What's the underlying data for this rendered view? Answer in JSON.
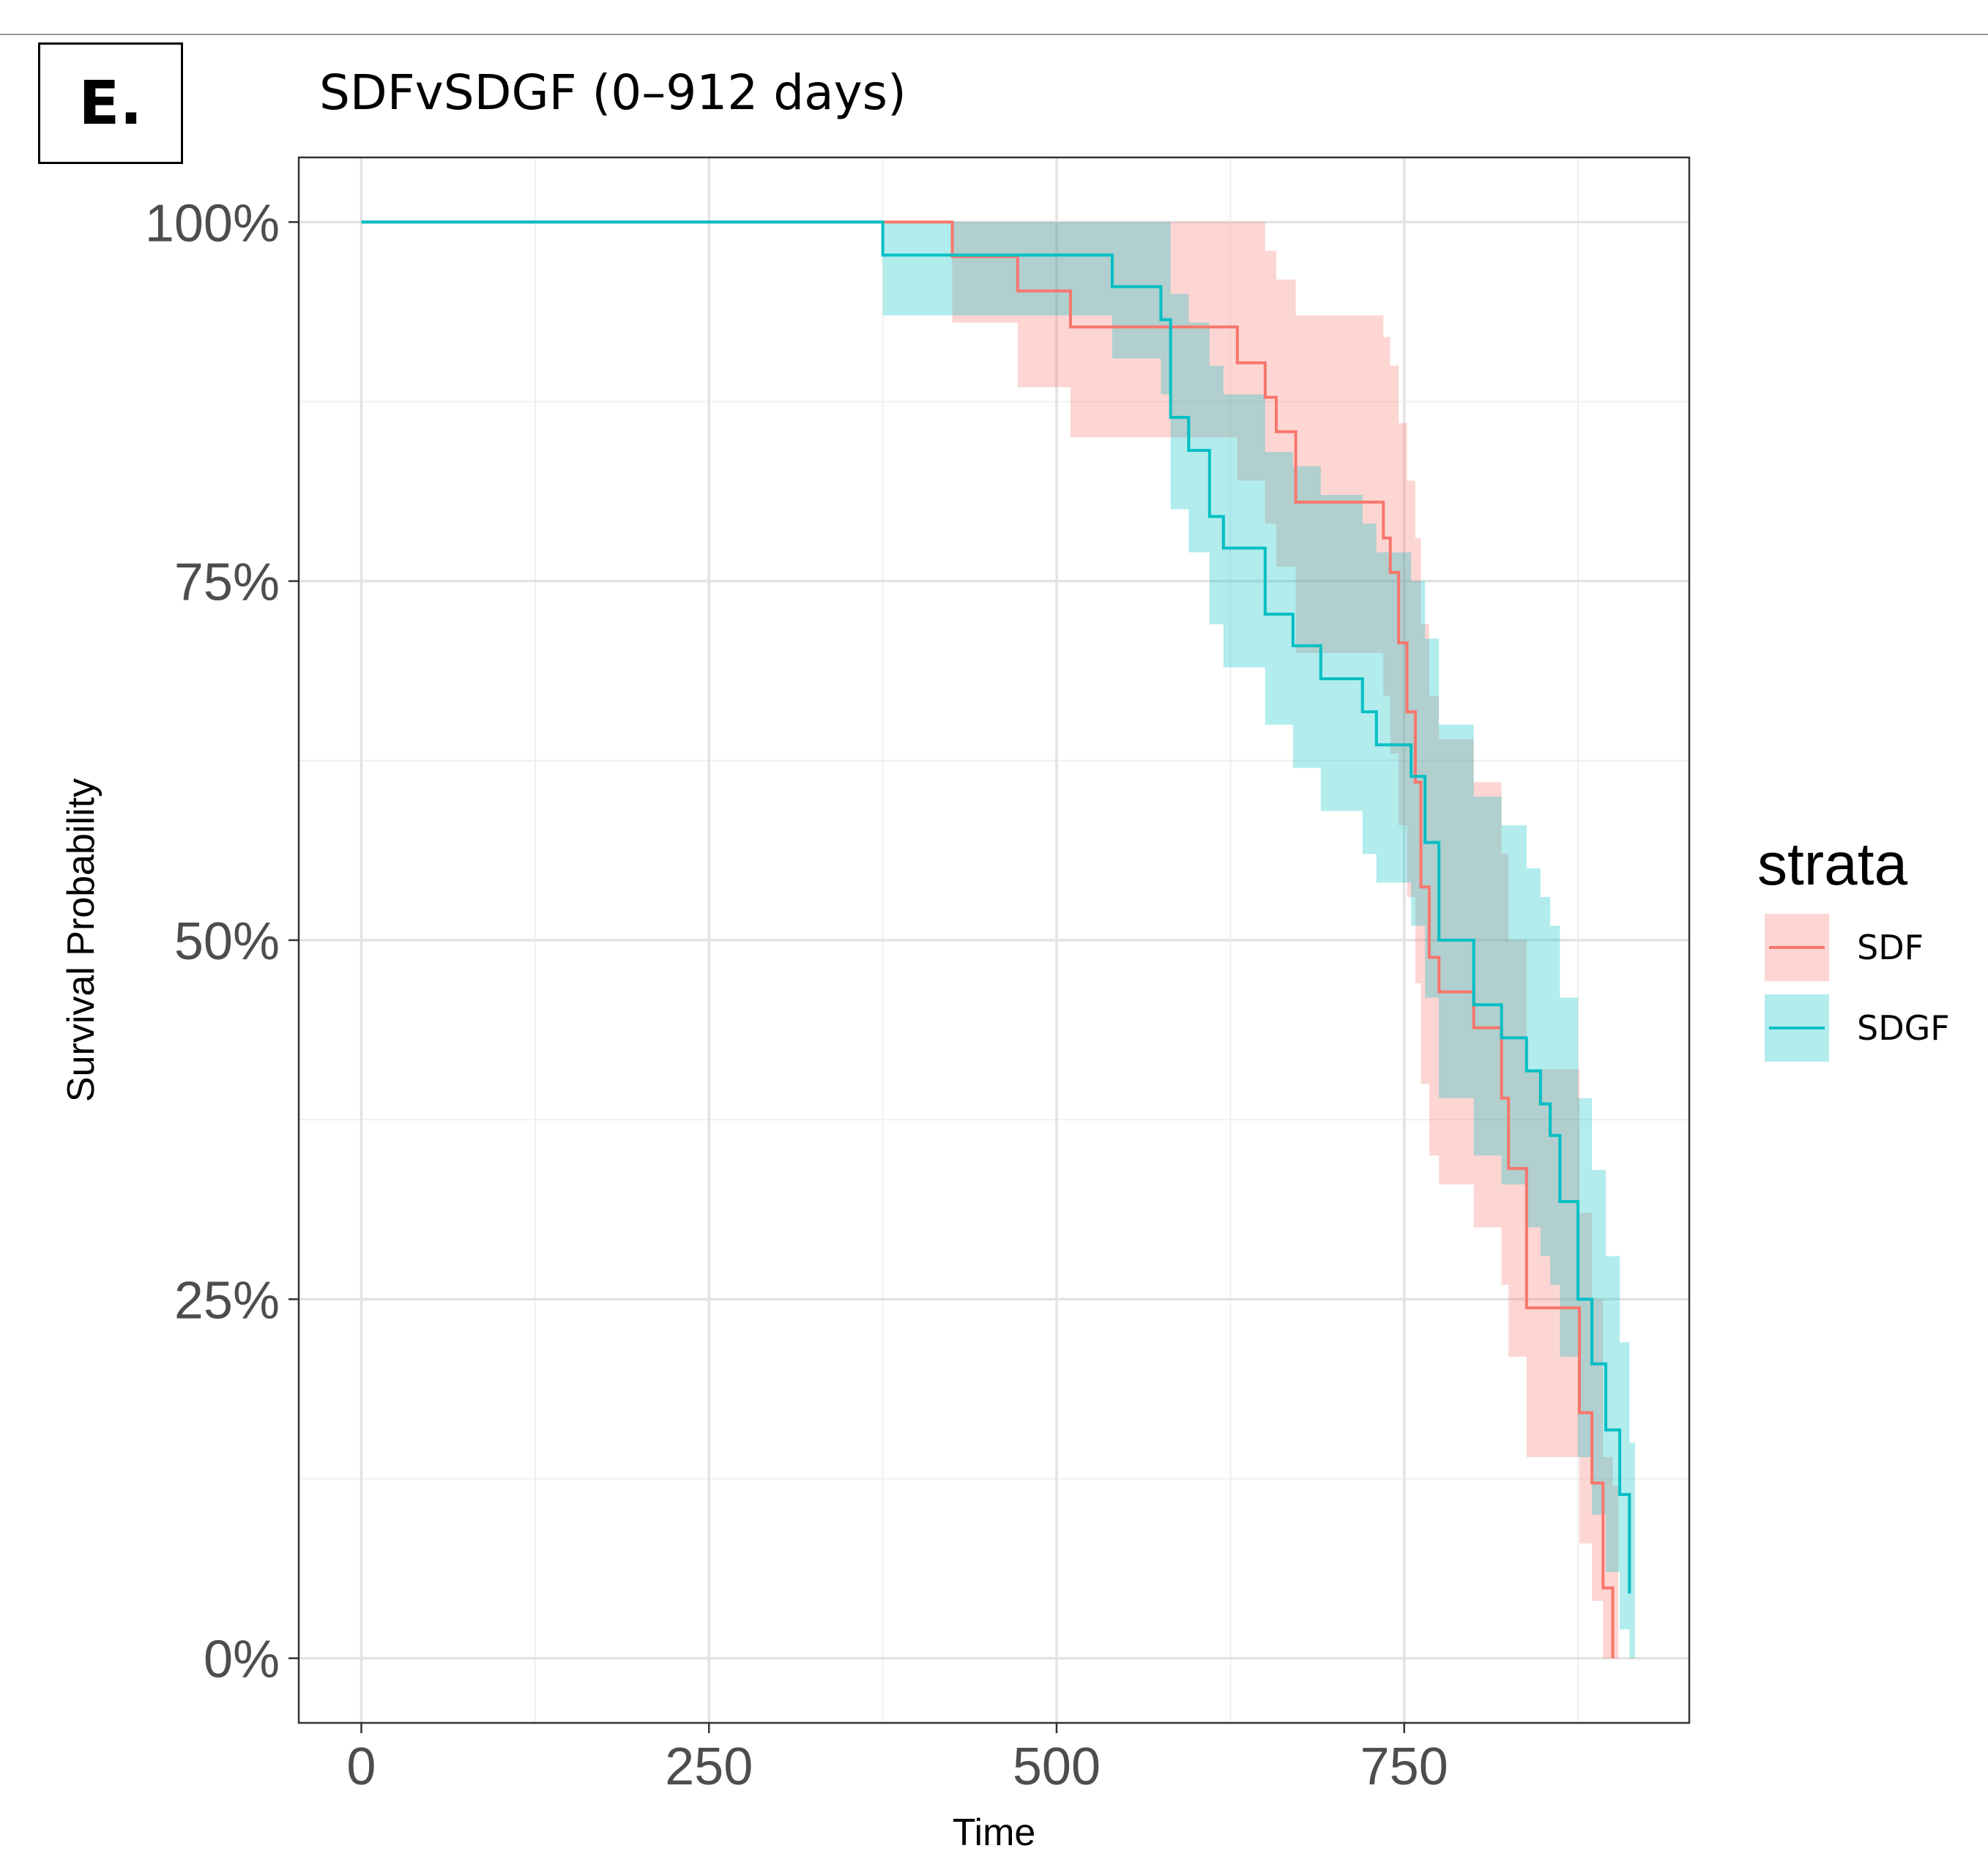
{
  "panel_label": "E.",
  "chart_data": {
    "type": "line",
    "subtype": "kaplan-meier survival curve with confidence bands",
    "title": "SDFvSDGF (0–912 days)",
    "xlabel": "Time",
    "ylabel": "Survival Probability",
    "xlim": [
      -45,
      955
    ],
    "ylim": [
      -0.045,
      1.045
    ],
    "x_ticks": [
      0,
      250,
      500,
      750
    ],
    "x_tick_labels": [
      "0",
      "250",
      "500",
      "750"
    ],
    "y_ticks": [
      0,
      0.25,
      0.5,
      0.75,
      1.0
    ],
    "y_tick_labels": [
      "0%",
      "25%",
      "50%",
      "75%",
      "100%"
    ],
    "grid": true,
    "legend": {
      "title": "strata",
      "position": "right"
    },
    "series": [
      {
        "name": "SDF",
        "color": "#F8766D",
        "band_color": "#F8766D",
        "time": [
          0,
          425,
          472,
          510,
          630,
          650,
          658,
          672,
          735,
          740,
          746,
          752,
          758,
          762,
          768,
          775,
          800,
          820,
          825,
          838,
          876,
          885,
          893,
          900
        ],
        "survival": [
          1.0,
          0.976,
          0.952,
          0.927,
          0.902,
          0.878,
          0.854,
          0.805,
          0.78,
          0.756,
          0.707,
          0.659,
          0.61,
          0.537,
          0.488,
          0.464,
          0.439,
          0.39,
          0.341,
          0.244,
          0.171,
          0.122,
          0.049,
          0.0
        ],
        "lower": [
          1.0,
          0.93,
          0.885,
          0.85,
          0.82,
          0.79,
          0.76,
          0.7,
          0.67,
          0.63,
          0.58,
          0.53,
          0.47,
          0.4,
          0.35,
          0.33,
          0.3,
          0.26,
          0.21,
          0.14,
          0.08,
          0.04,
          0.0,
          0.0
        ],
        "upper": [
          1.0,
          1.0,
          1.0,
          1.0,
          1.0,
          0.98,
          0.96,
          0.935,
          0.92,
          0.9,
          0.86,
          0.82,
          0.78,
          0.72,
          0.67,
          0.64,
          0.61,
          0.56,
          0.5,
          0.41,
          0.31,
          0.25,
          0.14,
          0.12
        ]
      },
      {
        "name": "SDGF",
        "color": "#00BFC4",
        "band_color": "#00BFC4",
        "time": [
          0,
          375,
          540,
          575,
          582,
          595,
          610,
          620,
          650,
          670,
          690,
          720,
          730,
          755,
          765,
          775,
          800,
          820,
          838,
          848,
          855,
          862,
          875,
          885,
          895,
          905,
          912
        ],
        "survival": [
          1.0,
          0.977,
          0.955,
          0.932,
          0.864,
          0.841,
          0.795,
          0.773,
          0.727,
          0.705,
          0.682,
          0.659,
          0.636,
          0.614,
          0.568,
          0.5,
          0.455,
          0.432,
          0.409,
          0.386,
          0.364,
          0.318,
          0.25,
          0.205,
          0.159,
          0.114,
          0.045
        ],
        "lower": [
          1.0,
          0.935,
          0.905,
          0.88,
          0.8,
          0.77,
          0.72,
          0.69,
          0.65,
          0.62,
          0.59,
          0.56,
          0.54,
          0.51,
          0.46,
          0.39,
          0.35,
          0.33,
          0.3,
          0.28,
          0.26,
          0.21,
          0.14,
          0.1,
          0.06,
          0.02,
          0.0
        ],
        "upper": [
          1.0,
          1.0,
          1.0,
          1.0,
          0.95,
          0.93,
          0.9,
          0.88,
          0.84,
          0.83,
          0.81,
          0.79,
          0.77,
          0.75,
          0.71,
          0.65,
          0.6,
          0.58,
          0.55,
          0.53,
          0.51,
          0.46,
          0.39,
          0.34,
          0.28,
          0.22,
          0.15
        ]
      }
    ]
  }
}
